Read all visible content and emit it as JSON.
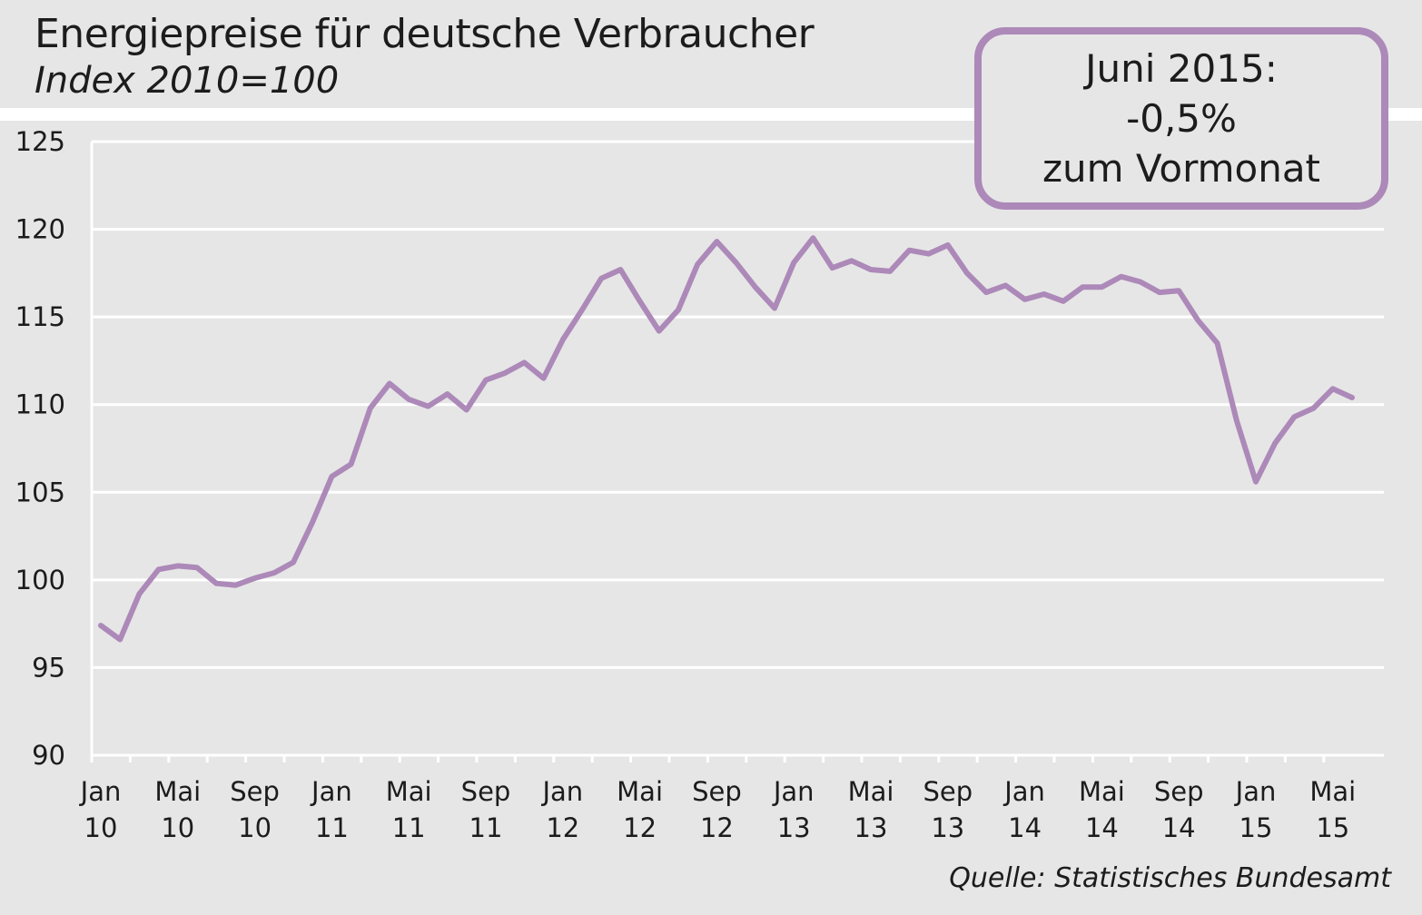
{
  "title": "Energiepreise für deutsche Verbraucher",
  "subtitle": "Index 2010=100",
  "callout": {
    "line1": "Juni 2015:",
    "line2": "-0,5%",
    "line3": "zum Vormonat"
  },
  "source": "Quelle: Statistisches Bundesamt",
  "colors": {
    "line": "#ac89b8",
    "background": "#e6e6e6",
    "grid": "#ffffff",
    "text": "#1c1c1c"
  },
  "chart_data": {
    "type": "line",
    "title": "Energiepreise für deutsche Verbraucher",
    "subtitle": "Index 2010=100",
    "xlabel": "",
    "ylabel": "",
    "ylim": [
      90,
      125
    ],
    "yticks": [
      "90",
      "95",
      "100",
      "105",
      "110",
      "115",
      "120",
      "125"
    ],
    "grid": true,
    "x_tick_labels": [
      {
        "month": "Jan",
        "year": "10"
      },
      {
        "month": "Mai",
        "year": "10"
      },
      {
        "month": "Sep",
        "year": "10"
      },
      {
        "month": "Jan",
        "year": "11"
      },
      {
        "month": "Mai",
        "year": "11"
      },
      {
        "month": "Sep",
        "year": "11"
      },
      {
        "month": "Jan",
        "year": "12"
      },
      {
        "month": "Mai",
        "year": "12"
      },
      {
        "month": "Sep",
        "year": "12"
      },
      {
        "month": "Jan",
        "year": "13"
      },
      {
        "month": "Mai",
        "year": "13"
      },
      {
        "month": "Sep",
        "year": "13"
      },
      {
        "month": "Jan",
        "year": "14"
      },
      {
        "month": "Mai",
        "year": "14"
      },
      {
        "month": "Sep",
        "year": "14"
      },
      {
        "month": "Jan",
        "year": "15"
      },
      {
        "month": "Mai",
        "year": "15"
      }
    ],
    "x": [
      "2010-01",
      "2010-02",
      "2010-03",
      "2010-04",
      "2010-05",
      "2010-06",
      "2010-07",
      "2010-08",
      "2010-09",
      "2010-10",
      "2010-11",
      "2010-12",
      "2011-01",
      "2011-02",
      "2011-03",
      "2011-04",
      "2011-05",
      "2011-06",
      "2011-07",
      "2011-08",
      "2011-09",
      "2011-10",
      "2011-11",
      "2011-12",
      "2012-01",
      "2012-02",
      "2012-03",
      "2012-04",
      "2012-05",
      "2012-06",
      "2012-07",
      "2012-08",
      "2012-09",
      "2012-10",
      "2012-11",
      "2012-12",
      "2013-01",
      "2013-02",
      "2013-03",
      "2013-04",
      "2013-05",
      "2013-06",
      "2013-07",
      "2013-08",
      "2013-09",
      "2013-10",
      "2013-11",
      "2013-12",
      "2014-01",
      "2014-02",
      "2014-03",
      "2014-04",
      "2014-05",
      "2014-06",
      "2014-07",
      "2014-08",
      "2014-09",
      "2014-10",
      "2014-11",
      "2014-12",
      "2015-01",
      "2015-02",
      "2015-03",
      "2015-04",
      "2015-05",
      "2015-06"
    ],
    "series": [
      {
        "values": [
          97.4,
          96.6,
          99.2,
          100.6,
          100.8,
          100.7,
          99.8,
          99.7,
          100.1,
          100.4,
          101.0,
          103.3,
          105.9,
          106.6,
          109.8,
          111.2,
          110.3,
          109.9,
          110.6,
          109.7,
          111.4,
          111.8,
          112.4,
          111.5,
          113.7,
          115.4,
          117.2,
          117.7,
          115.9,
          114.2,
          115.4,
          118.0,
          119.3,
          118.1,
          116.7,
          115.5,
          118.1,
          119.5,
          117.8,
          118.2,
          117.7,
          117.6,
          118.8,
          118.6,
          119.1,
          117.5,
          116.4,
          116.8,
          116.0,
          116.3,
          115.9,
          116.7,
          116.7,
          117.3,
          117.0,
          116.4,
          116.5,
          114.8,
          113.5,
          109.1,
          105.6,
          107.8,
          109.3,
          109.8,
          110.9,
          110.4
        ]
      }
    ]
  }
}
